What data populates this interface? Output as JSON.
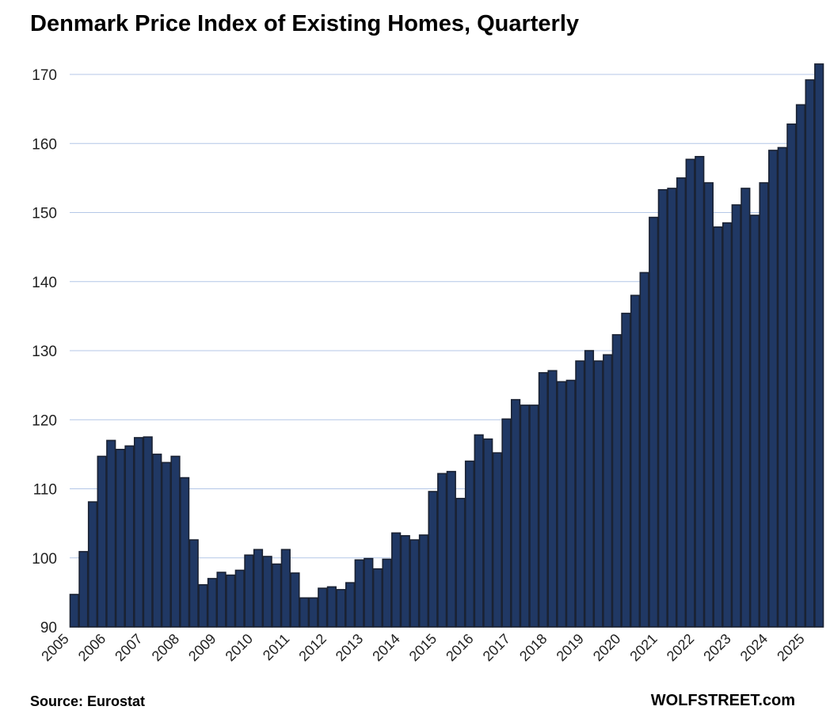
{
  "chart_data": {
    "type": "bar",
    "title": "Denmark Price Index of Existing Homes, Quarterly",
    "xlabel": "",
    "ylabel": "",
    "ylim": [
      90,
      170
    ],
    "yticks": [
      90,
      100,
      110,
      120,
      130,
      140,
      150,
      160,
      170
    ],
    "grid": true,
    "start": "2005 Q1",
    "xtick_labels": [
      "2005",
      "2006",
      "2007",
      "2008",
      "2009",
      "2010",
      "2011",
      "2012",
      "2013",
      "2014",
      "2015",
      "2016",
      "2017",
      "2018",
      "2019",
      "2020",
      "2021",
      "2022",
      "2023",
      "2024",
      "2025"
    ],
    "values": [
      94.7,
      100.9,
      108.1,
      114.7,
      117.0,
      115.7,
      116.2,
      117.4,
      117.5,
      115.0,
      113.8,
      114.7,
      111.6,
      102.6,
      96.1,
      97.0,
      97.9,
      97.5,
      98.2,
      100.4,
      101.2,
      100.2,
      99.1,
      101.2,
      97.8,
      94.2,
      94.2,
      95.6,
      95.8,
      95.4,
      96.4,
      99.7,
      99.9,
      98.4,
      99.8,
      103.6,
      103.2,
      102.6,
      103.3,
      109.6,
      112.2,
      112.5,
      108.6,
      114.0,
      117.8,
      117.2,
      115.2,
      120.1,
      122.9,
      122.1,
      122.1,
      126.8,
      127.1,
      125.5,
      125.7,
      128.5,
      130.0,
      128.5,
      129.4,
      132.3,
      135.4,
      138.0,
      141.3,
      149.3,
      153.3,
      153.5,
      155.0,
      157.7,
      158.1,
      154.3,
      147.9,
      148.5,
      151.1,
      153.5,
      149.6,
      154.3,
      159.0,
      159.4,
      162.8,
      165.6,
      169.2,
      171.5
    ],
    "colors": {
      "bar": "#203864",
      "bar_edge": "#1a2233",
      "grid": "#b4c7e7"
    }
  },
  "footer": {
    "source": "Source: Eurostat",
    "brand": "WOLFSTREET.com"
  }
}
